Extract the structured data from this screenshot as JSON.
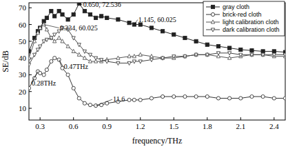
{
  "chart_data": {
    "type": "line",
    "x_label": "frequency/THz",
    "y_label": "SE/dB",
    "x": [
      0.2,
      0.25,
      0.28,
      0.3,
      0.334,
      0.36,
      0.4,
      0.43,
      0.47,
      0.5,
      0.55,
      0.6,
      0.65,
      0.7,
      0.75,
      0.8,
      0.85,
      0.9,
      1.0,
      1.1,
      1.145,
      1.2,
      1.3,
      1.4,
      1.5,
      1.6,
      1.7,
      1.8,
      1.9,
      2.0,
      2.1,
      2.2,
      2.3,
      2.4,
      2.5
    ],
    "xlim": [
      0.2,
      2.5
    ],
    "ylim": [
      3,
      73
    ],
    "xticks": [
      0.3,
      0.6,
      0.9,
      1.2,
      1.5,
      1.8,
      2.1,
      2.4
    ],
    "yticks": [
      10,
      20,
      30,
      40,
      50,
      60,
      70
    ],
    "grid": false,
    "legend": "upper right",
    "series": [
      {
        "name": "gray cloth",
        "color": "#222222",
        "marker": "square",
        "line_style": "solid",
        "values": [
          44,
          52,
          56,
          58,
          62,
          64,
          68,
          65,
          68,
          66,
          63,
          66,
          72.536,
          68,
          66,
          64,
          65,
          64,
          63,
          61,
          60.025,
          60,
          58,
          56,
          54,
          52,
          50,
          48,
          47,
          46,
          45,
          44.5,
          44,
          44,
          43.5
        ]
      },
      {
        "name": "brick-red cloth",
        "color": "#333333",
        "marker": "open-circle",
        "line_style": "solid",
        "values": [
          22,
          28,
          32,
          31,
          30,
          33,
          38,
          40,
          39,
          34,
          30,
          22,
          16,
          13,
          12,
          11.6,
          12,
          13,
          14,
          15,
          15,
          15,
          16,
          17,
          17,
          17,
          17,
          17,
          16,
          16,
          16,
          17,
          17,
          16,
          16
        ]
      },
      {
        "name": "light calibration cloth",
        "color": "#555555",
        "marker": "open-triangle-up",
        "line_style": "solid",
        "values": [
          40,
          50,
          55,
          58,
          60.025,
          57,
          52,
          50,
          52,
          50,
          47,
          44,
          42,
          40,
          38,
          38,
          38,
          39,
          40,
          41,
          41,
          42,
          41,
          40,
          40,
          41,
          42,
          42,
          41,
          40,
          41,
          42,
          42,
          41,
          41
        ]
      },
      {
        "name": "dark calibration cloth",
        "color": "#444444",
        "marker": "open-triangle-down",
        "line_style": "solid",
        "values": [
          36,
          42,
          45,
          47,
          50,
          51,
          52,
          54,
          56,
          58,
          57,
          52,
          48,
          44,
          42,
          40,
          39,
          38,
          37,
          37,
          38,
          38,
          39,
          40,
          41,
          41,
          42,
          42,
          43,
          43,
          42,
          42,
          42,
          42,
          42
        ]
      }
    ],
    "annotations": [
      {
        "text": "0.650, 72.536",
        "x": 0.65,
        "y": 72.536
      },
      {
        "text": "1.145, 60.025",
        "x": 1.145,
        "y": 60.025
      },
      {
        "text": "0.334, 60.025",
        "x": 0.334,
        "y": 60.025
      },
      {
        "text": "0.47THz",
        "x": 0.47,
        "y": 39
      },
      {
        "text": "0.28THz",
        "x": 0.28,
        "y": 32
      },
      {
        "text": "11.6",
        "x": 0.8,
        "y": 11.6
      }
    ]
  }
}
